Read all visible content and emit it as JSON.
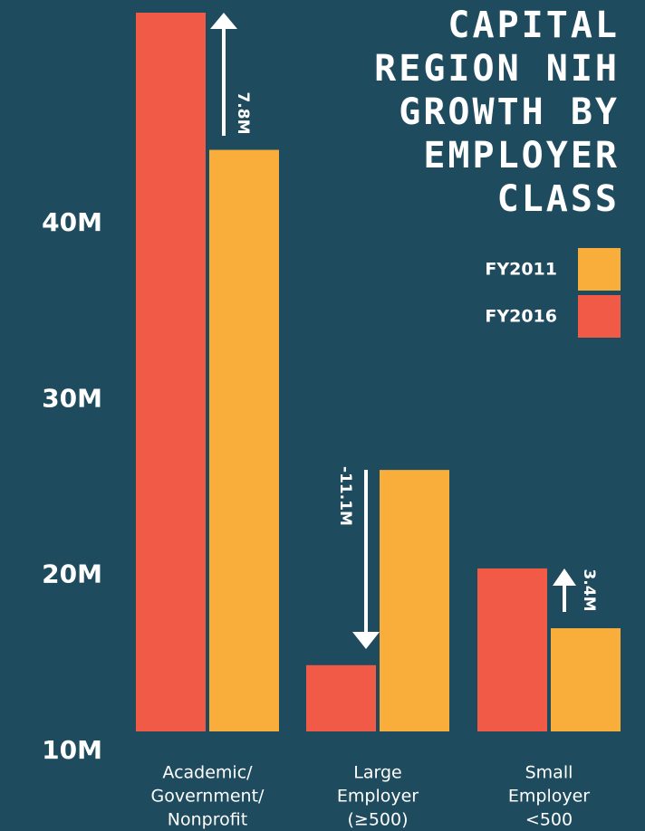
{
  "chart_data": {
    "type": "bar",
    "title_lines": [
      "CAPITAL",
      "REGION NIH",
      "GROWTH BY",
      "EMPLOYER",
      "CLASS"
    ],
    "categories": [
      [
        "Academic/",
        "Government/",
        "Nonprofit"
      ],
      [
        "Large",
        "Employer",
        "(≥500)"
      ],
      [
        "Small",
        "Employer",
        "<500"
      ]
    ],
    "series": [
      {
        "name": "FY2016",
        "color": "#f05a46",
        "values": [
          52.0,
          14.9,
          20.4
        ]
      },
      {
        "name": "FY2011",
        "color": "#f9ae3b",
        "values": [
          44.2,
          26.0,
          17.0
        ]
      }
    ],
    "ylim": [
      10,
      52
    ],
    "yticks": [
      {
        "value": 10,
        "label": "10M"
      },
      {
        "value": 20,
        "label": "20M"
      },
      {
        "value": 30,
        "label": "30M"
      },
      {
        "value": 40,
        "label": "40M"
      }
    ],
    "annotations": [
      "7.8M",
      "-11.1M",
      "3.4M"
    ],
    "grid": false
  }
}
